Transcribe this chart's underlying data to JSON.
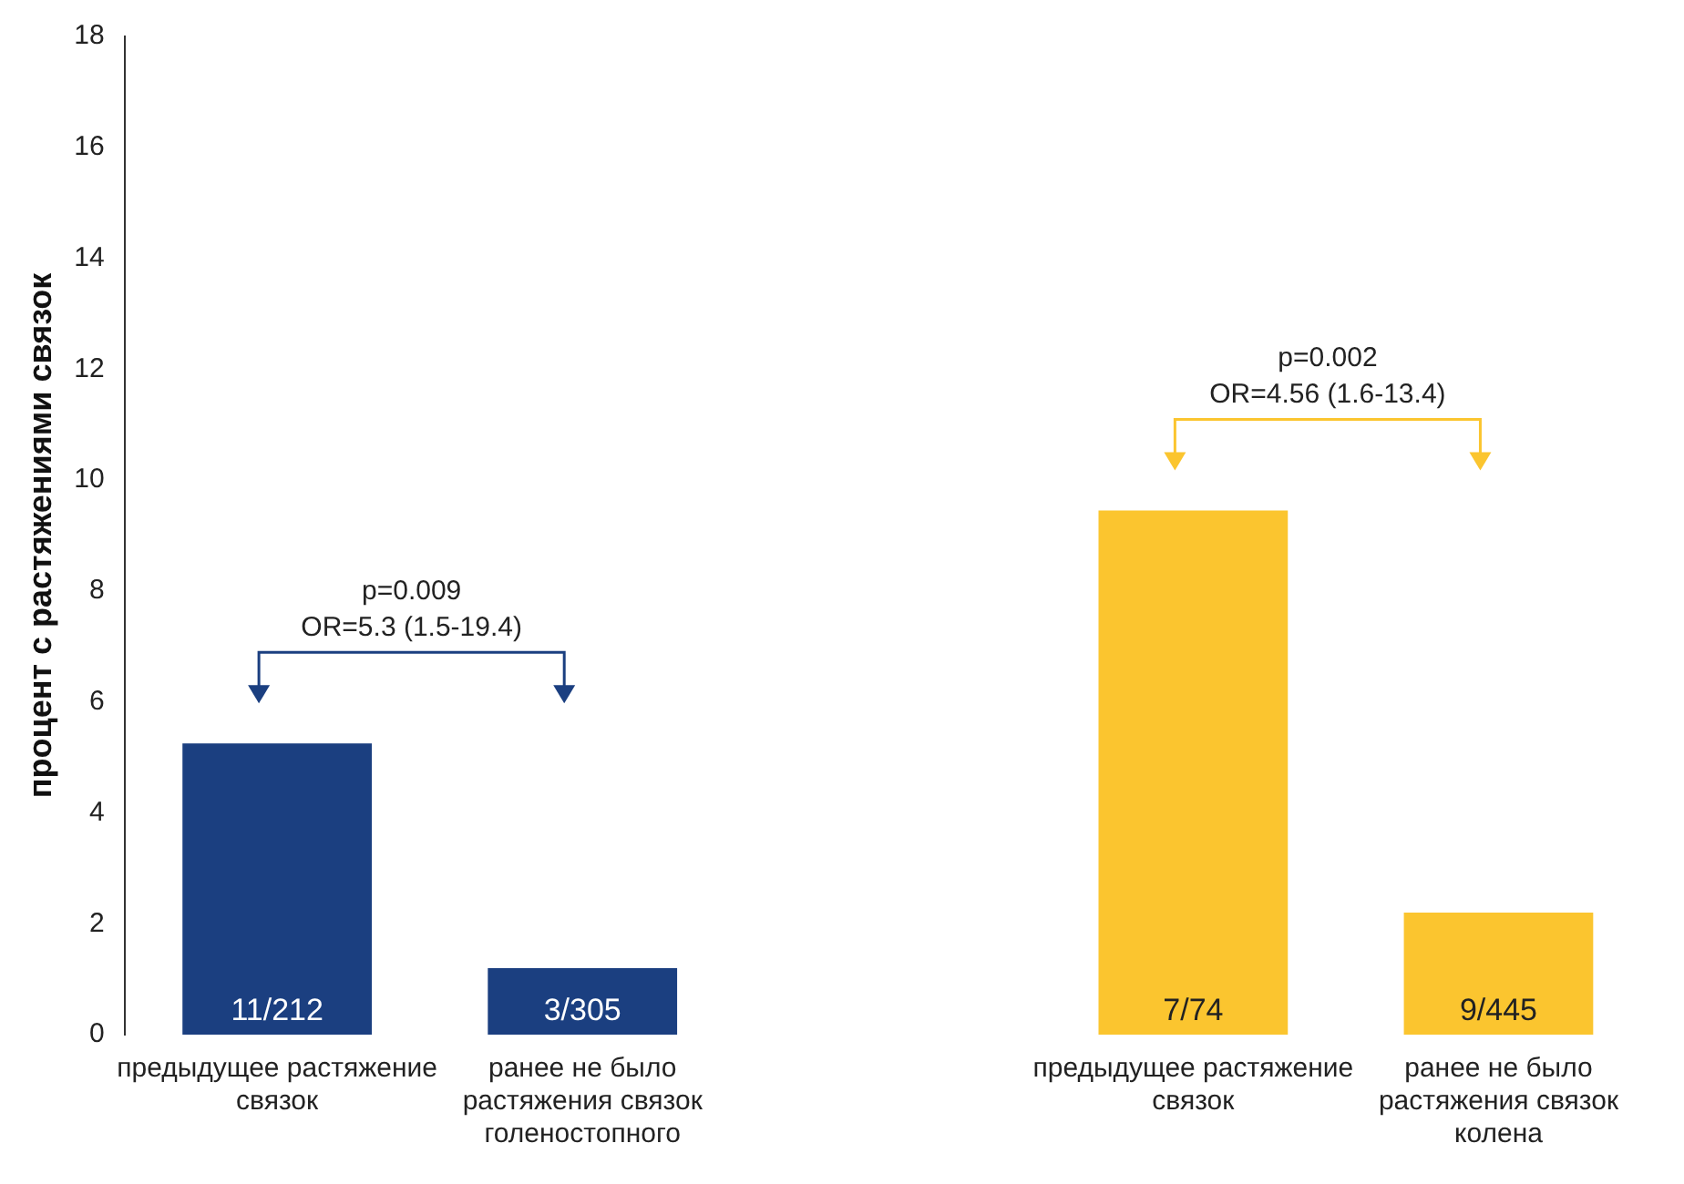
{
  "chart_data": {
    "type": "bar",
    "ylabel": "процент с растяжениями связок",
    "categories": [
      "предыдущее растяжение связок",
      "ранее не было растяжения связок голеностопного",
      null,
      "предыдущее растяжение связок",
      "ранее не было растяжения связок колена"
    ],
    "values": [
      5.25,
      1.2,
      null,
      9.45,
      2.2
    ],
    "colors": [
      "#1b3f80",
      "#1b3f80",
      "#1b3f80",
      "#fbc52f",
      "#fbc52f"
    ],
    "value_labels": [
      "11/212",
      "3/305",
      null,
      "7/74",
      "9/445"
    ],
    "ylim": [
      0,
      18
    ],
    "yticks": [
      0,
      2,
      4,
      6,
      8,
      10,
      12,
      14,
      16,
      18
    ],
    "grid": false,
    "legend": false,
    "annotations": [
      "p=0.009\nOR=5.3 (1.5-19.4)",
      "p=0.002\nOR=4.56 (1.6-13.4)"
    ]
  }
}
